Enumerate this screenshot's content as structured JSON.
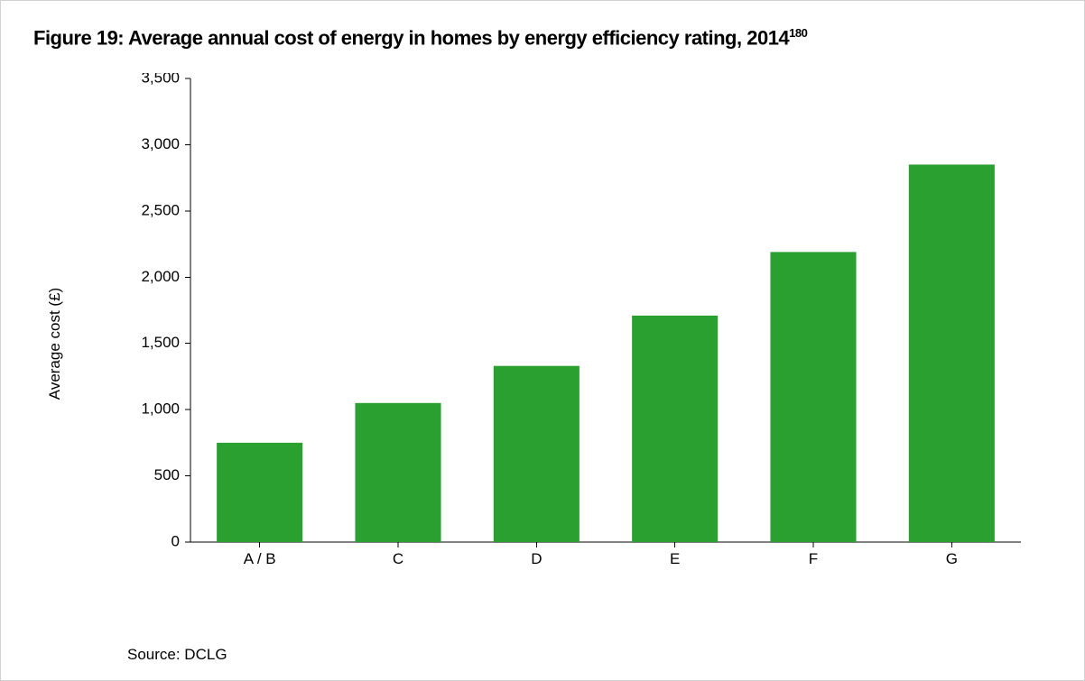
{
  "figure": {
    "title_prefix": "Figure 19: ",
    "title_main": "Average annual cost of energy in homes by energy efficiency rating, 2014",
    "title_sup": "180",
    "source": "Source: DCLG",
    "chart": {
      "type": "bar",
      "categories": [
        "A / B",
        "C",
        "D",
        "E",
        "F",
        "G"
      ],
      "values": [
        750,
        1050,
        1330,
        1710,
        2190,
        2850
      ],
      "bar_colors": [
        "#2aa030",
        "#2aa030",
        "#2aa030",
        "#2aa030",
        "#2aa030",
        "#2aa030"
      ],
      "ylabel": "Average cost (£)",
      "ylim": [
        0,
        3500
      ],
      "ytick_step": 500,
      "ytick_labels": [
        "0",
        "500",
        "1,000",
        "1,500",
        "2,000",
        "2,500",
        "3,000",
        "3,500"
      ],
      "background_color": "#ffffff",
      "axis_color": "#000000",
      "bar_width_ratio": 0.62,
      "title_fontsize": 22,
      "label_fontsize": 17,
      "tick_fontsize": 17,
      "tick_len": 6
    }
  }
}
